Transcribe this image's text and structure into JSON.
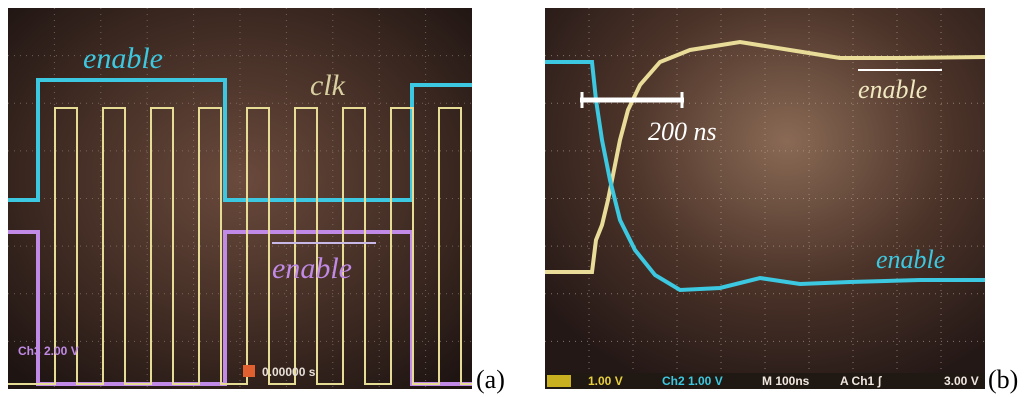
{
  "panel_a": {
    "label_enable": "enable",
    "label_clk": "clk",
    "label_enable_bar": "enable",
    "status_ch3": "Ch3  2.00 V",
    "status_time": "0.00000 s",
    "caption": "(a)"
  },
  "panel_b": {
    "label_enable_bar": "enable",
    "scale": "200 ns",
    "label_enable": "enable",
    "status_ch1": "1.00 V",
    "status_ch2": "Ch2  1.00 V",
    "status_m": "M 100ns",
    "status_trig": "A  Ch1  ʃ",
    "status_level": "3.00 V",
    "caption": "(b)"
  }
}
